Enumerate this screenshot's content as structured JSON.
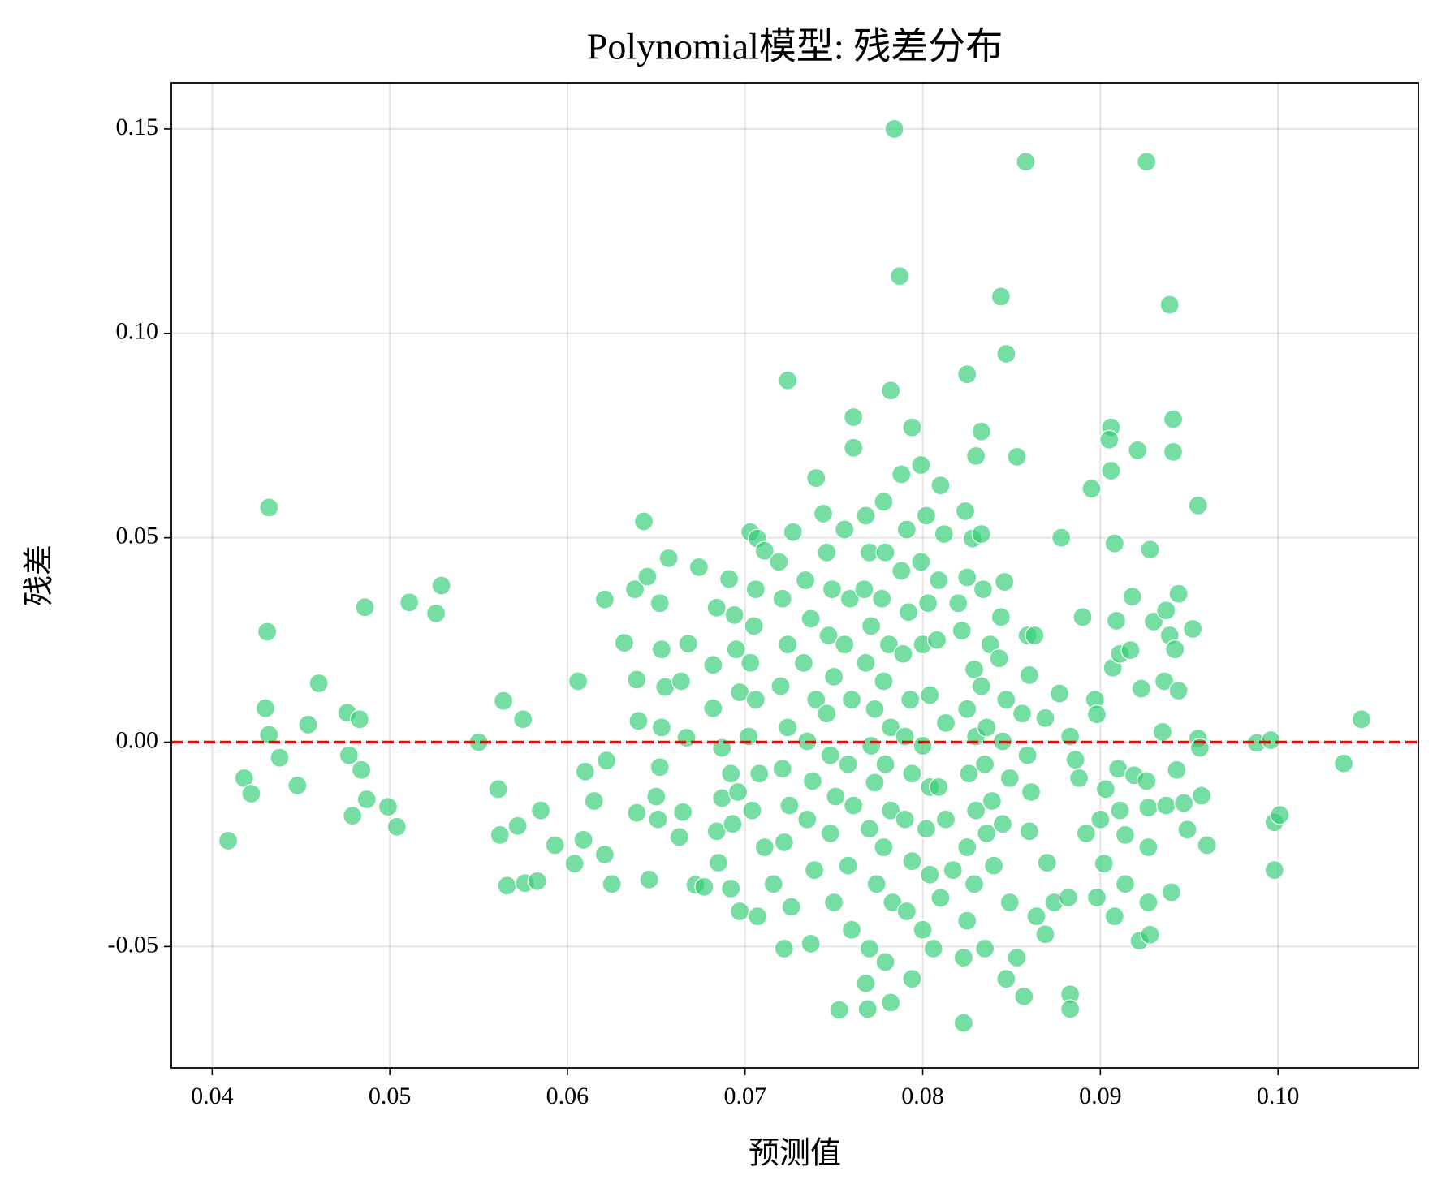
{
  "chart_data": {
    "type": "scatter",
    "title": "Polynomial模型: 残差分布",
    "x_label": "预测值",
    "y_label": "残差",
    "xlim": [
      0.0377,
      0.1079
    ],
    "ylim": [
      -0.0797,
      0.1613
    ],
    "xticks": [
      0.04,
      0.05,
      0.06,
      0.07,
      0.08,
      0.09,
      {
        "value": 0.1,
        "label": "0.10"
      }
    ],
    "yticks": [
      {
        "value": -0.05,
        "label": "-0.05"
      },
      {
        "value": 0,
        "label": "0.00"
      },
      0.05,
      {
        "value": 0.1,
        "label": "0.10"
      },
      0.15
    ],
    "grid": true,
    "reference_line": {
      "y": 0,
      "color": "#ff0000",
      "style": "dashed"
    },
    "series": [
      {
        "color": "#2ecc71",
        "x": [
          0.0784,
          0.0858,
          0.0926,
          0.0787,
          0.0844,
          0.0939,
          0.0847,
          0.0724,
          0.0825,
          0.0782,
          0.0761,
          0.0941,
          0.0794,
          0.0906,
          0.0833,
          0.0905,
          0.0761,
          0.0921,
          0.0941,
          0.083,
          0.0853,
          0.0906,
          0.074,
          0.081,
          0.0895,
          0.0432,
          0.0955,
          0.0431,
          0.0486,
          0.0511,
          0.0529,
          0.0526,
          0.043,
          0.0432,
          0.046,
          0.0454,
          0.0476,
          0.0483,
          0.0438,
          0.0418,
          0.0422,
          0.0448,
          0.0409,
          0.0477,
          0.0484,
          0.0487,
          0.0479,
          0.0499,
          0.0504,
          0.055,
          0.0564,
          0.0575,
          0.0561,
          0.0562,
          0.0572,
          0.0585,
          0.0566,
          0.0576,
          0.0583,
          0.0593,
          0.0606,
          0.061,
          0.0609,
          0.0604,
          0.0621,
          0.0622,
          0.0615,
          0.0621,
          0.0625,
          0.0643,
          0.0638,
          0.0645,
          0.0632,
          0.0639,
          0.064,
          0.0639,
          0.0646,
          0.0657,
          0.0652,
          0.0653,
          0.0655,
          0.0653,
          0.0652,
          0.065,
          0.0651,
          0.0665,
          0.0663,
          0.0674,
          0.0668,
          0.0664,
          0.0667,
          0.0672,
          0.0677,
          0.0684,
          0.0682,
          0.0682,
          0.0687,
          0.0687,
          0.0684,
          0.0685,
          0.0691,
          0.0694,
          0.0695,
          0.0697,
          0.0692,
          0.0696,
          0.0693,
          0.0692,
          0.0697,
          0.0703,
          0.0707,
          0.0711,
          0.0706,
          0.0705,
          0.0703,
          0.0706,
          0.0702,
          0.0708,
          0.0704,
          0.0711,
          0.0707,
          0.0716,
          0.0719,
          0.0721,
          0.0724,
          0.072,
          0.0724,
          0.0721,
          0.0725,
          0.0722,
          0.0722,
          0.0726,
          0.0727,
          0.0734,
          0.0737,
          0.0733,
          0.074,
          0.0735,
          0.0738,
          0.0735,
          0.0739,
          0.0737,
          0.0744,
          0.0746,
          0.0749,
          0.0747,
          0.075,
          0.0746,
          0.0748,
          0.0751,
          0.0748,
          0.075,
          0.0753,
          0.0756,
          0.0759,
          0.0756,
          0.076,
          0.0758,
          0.0761,
          0.0758,
          0.076,
          0.0768,
          0.0769,
          0.0768,
          0.077,
          0.0767,
          0.0771,
          0.0768,
          0.0773,
          0.0771,
          0.0773,
          0.077,
          0.0774,
          0.077,
          0.0778,
          0.0779,
          0.0777,
          0.0781,
          0.0778,
          0.0782,
          0.0779,
          0.0782,
          0.0778,
          0.0783,
          0.0782,
          0.0779,
          0.0788,
          0.0791,
          0.0788,
          0.0792,
          0.0789,
          0.0793,
          0.079,
          0.0794,
          0.079,
          0.0794,
          0.0791,
          0.0794,
          0.0799,
          0.0802,
          0.0799,
          0.0803,
          0.08,
          0.0804,
          0.08,
          0.0804,
          0.0802,
          0.0804,
          0.08,
          0.0806,
          0.0812,
          0.0809,
          0.0808,
          0.0813,
          0.0809,
          0.0813,
          0.081,
          0.0817,
          0.082,
          0.0824,
          0.0828,
          0.0825,
          0.0822,
          0.0829,
          0.0825,
          0.083,
          0.0826,
          0.083,
          0.0825,
          0.0829,
          0.0825,
          0.0823,
          0.0823,
          0.0833,
          0.0834,
          0.0838,
          0.0833,
          0.0836,
          0.0835,
          0.0839,
          0.0836,
          0.084,
          0.0835,
          0.0846,
          0.0844,
          0.0843,
          0.0847,
          0.0845,
          0.0849,
          0.0845,
          0.0849,
          0.0847,
          0.0853,
          0.0857,
          0.0859,
          0.086,
          0.0856,
          0.0859,
          0.0861,
          0.086,
          0.0864,
          0.0863,
          0.087,
          0.0869,
          0.0869,
          0.0877,
          0.0878,
          0.0874,
          0.0882,
          0.0883,
          0.0883,
          0.0883,
          0.0886,
          0.0888,
          0.089,
          0.0892,
          0.0897,
          0.0898,
          0.09,
          0.0898,
          0.0902,
          0.0903,
          0.0907,
          0.0908,
          0.0909,
          0.0911,
          0.091,
          0.0911,
          0.0908,
          0.0914,
          0.0914,
          0.0918,
          0.0917,
          0.0919,
          0.0922,
          0.0923,
          0.0926,
          0.0927,
          0.0928,
          0.0927,
          0.0928,
          0.0927,
          0.093,
          0.0935,
          0.0936,
          0.0937,
          0.0939,
          0.0937,
          0.094,
          0.0942,
          0.0943,
          0.0944,
          0.0944,
          0.0947,
          0.0949,
          0.0952,
          0.0955,
          0.0956,
          0.0957,
          0.096,
          0.0988,
          0.0996,
          0.0998,
          0.1001,
          0.0998,
          0.1037,
          0.1047
        ],
        "values": [
          0.15,
          0.142,
          0.142,
          0.114,
          0.109,
          0.107,
          0.095,
          0.0885,
          0.09,
          0.086,
          0.0795,
          0.079,
          0.077,
          0.077,
          0.076,
          0.074,
          0.072,
          0.0714,
          0.071,
          0.07,
          0.0698,
          0.0664,
          0.0646,
          0.0628,
          0.062,
          0.0574,
          0.0579,
          0.027,
          0.033,
          0.0342,
          0.0383,
          0.0315,
          0.0083,
          0.0018,
          0.0144,
          0.0043,
          0.0072,
          0.0056,
          -0.0038,
          -0.0088,
          -0.0126,
          -0.0106,
          -0.0241,
          -0.0032,
          -0.0068,
          -0.014,
          -0.018,
          -0.0158,
          -0.0207,
          0.0,
          0.0101,
          0.0056,
          -0.0115,
          -0.0227,
          -0.0205,
          -0.0167,
          -0.0351,
          -0.0345,
          -0.034,
          -0.0252,
          0.0149,
          -0.0072,
          -0.0239,
          -0.0297,
          0.0349,
          -0.0045,
          -0.0144,
          -0.0275,
          -0.0347,
          0.054,
          0.0374,
          0.0405,
          0.0243,
          0.0153,
          0.0052,
          -0.0173,
          -0.0336,
          0.045,
          0.034,
          0.0227,
          0.0135,
          0.0036,
          -0.0061,
          -0.0133,
          -0.0189,
          -0.0171,
          -0.0232,
          0.0428,
          0.0241,
          0.0149,
          0.0011,
          -0.0349,
          -0.0354,
          0.0329,
          0.0189,
          0.0083,
          -0.0014,
          -0.0137,
          -0.0218,
          -0.0295,
          0.0399,
          0.0311,
          0.0227,
          0.0122,
          -0.0077,
          -0.0122,
          -0.02,
          -0.0358,
          -0.0414,
          0.0514,
          0.0498,
          0.0468,
          0.0374,
          0.0284,
          0.0194,
          0.0104,
          0.0014,
          -0.0077,
          -0.0167,
          -0.0257,
          -0.0426,
          -0.0347,
          0.0441,
          0.0351,
          0.0239,
          0.0137,
          0.0036,
          -0.0065,
          -0.0155,
          -0.0245,
          -0.0505,
          -0.0403,
          0.0514,
          0.0396,
          0.0302,
          0.0194,
          0.0104,
          0.0002,
          -0.0095,
          -0.0189,
          -0.0313,
          -0.0493,
          0.0559,
          0.0464,
          0.0374,
          0.0261,
          0.016,
          0.007,
          -0.0032,
          -0.0133,
          -0.0223,
          -0.0392,
          -0.0655,
          0.052,
          0.0351,
          0.0239,
          0.0104,
          -0.0054,
          -0.0155,
          -0.0302,
          -0.0459,
          -0.059,
          -0.0653,
          0.0554,
          0.0464,
          0.0374,
          0.0284,
          0.0194,
          0.0081,
          -0.0009,
          -0.0099,
          -0.0212,
          -0.0347,
          -0.0505,
          0.0588,
          0.0464,
          0.0351,
          0.0239,
          0.0149,
          0.0036,
          -0.0054,
          -0.0167,
          -0.0257,
          -0.0392,
          -0.0637,
          -0.0538,
          0.0655,
          0.052,
          0.0419,
          0.0318,
          0.0216,
          0.0104,
          0.0014,
          -0.0077,
          -0.0189,
          -0.0291,
          -0.0414,
          -0.0579,
          0.0678,
          0.0554,
          0.0441,
          0.034,
          0.0239,
          0.0115,
          -0.0009,
          -0.011,
          -0.0212,
          -0.0324,
          -0.0459,
          -0.0505,
          0.0509,
          0.0396,
          0.025,
          0.0047,
          -0.011,
          -0.0189,
          -0.0381,
          -0.0313,
          0.034,
          0.0565,
          0.0498,
          0.0403,
          0.0273,
          0.0178,
          0.0081,
          0.0014,
          -0.0077,
          -0.0167,
          -0.0257,
          -0.0347,
          -0.0437,
          -0.0527,
          -0.0687,
          0.0509,
          0.0374,
          0.0239,
          0.0137,
          0.0036,
          -0.0054,
          -0.0144,
          -0.0223,
          -0.0302,
          -0.0505,
          0.0392,
          0.0306,
          0.0205,
          0.0104,
          0.0002,
          -0.0088,
          -0.02,
          -0.0392,
          -0.0579,
          -0.0527,
          -0.0622,
          0.0261,
          0.0164,
          0.007,
          -0.0032,
          -0.0122,
          -0.0218,
          -0.0426,
          0.0261,
          -0.0295,
          -0.047,
          0.0059,
          0.0119,
          0.05,
          -0.0392,
          -0.038,
          -0.0617,
          -0.0653,
          0.0014,
          -0.0043,
          -0.0088,
          0.0306,
          -0.0223,
          0.0104,
          0.0068,
          -0.0189,
          -0.038,
          -0.0297,
          -0.0115,
          0.0182,
          0.0486,
          0.0297,
          0.0216,
          -0.0065,
          -0.0167,
          -0.0426,
          -0.0227,
          -0.0347,
          0.0356,
          0.0225,
          -0.0081,
          -0.0486,
          0.0131,
          -0.0095,
          -0.016,
          0.0471,
          -0.0257,
          -0.0471,
          -0.0392,
          0.0295,
          0.0025,
          0.0149,
          0.0322,
          0.0261,
          -0.0155,
          -0.0367,
          0.0227,
          -0.0068,
          0.0363,
          0.0126,
          -0.0149,
          -0.0214,
          0.0277,
          0.0009,
          -0.0014,
          -0.0131,
          -0.0252,
          -0.0002,
          0.0005,
          -0.0196,
          -0.0178,
          -0.0313,
          -0.0052,
          0.0056
        ]
      }
    ]
  }
}
